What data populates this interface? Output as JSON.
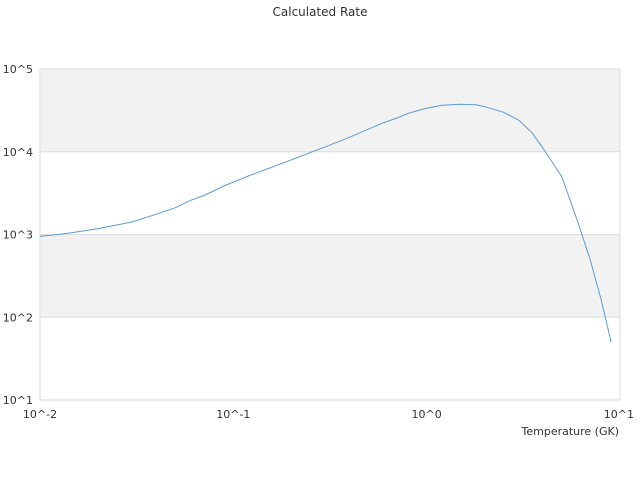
{
  "chart_data": {
    "type": "line",
    "title": "Calculated Rate",
    "xlabel": "Temperature (GK)",
    "ylabel": "",
    "x_scale": "log",
    "y_scale": "log",
    "xlim": [
      0.01,
      10
    ],
    "ylim": [
      10,
      100000
    ],
    "x_ticks": [
      {
        "value": 0.01,
        "label": "10^-2"
      },
      {
        "value": 0.1,
        "label": "10^-1"
      },
      {
        "value": 1,
        "label": "10^0"
      },
      {
        "value": 10,
        "label": "10^1"
      }
    ],
    "y_ticks": [
      {
        "value": 10,
        "label": "10^1"
      },
      {
        "value": 100,
        "label": "10^2"
      },
      {
        "value": 1000,
        "label": "10^3"
      },
      {
        "value": 10000,
        "label": "10^4"
      },
      {
        "value": 100000,
        "label": "10^5"
      }
    ],
    "grid": true,
    "alternating_bands": true,
    "band_color": "#f2f2f2",
    "series_color": "#5b9bd5",
    "series": [
      {
        "x": [
          0.01,
          0.012,
          0.015,
          0.02,
          0.03,
          0.04,
          0.05,
          0.06,
          0.07,
          0.08,
          0.09,
          0.1,
          0.12,
          0.15,
          0.2,
          0.25,
          0.3,
          0.4,
          0.5,
          0.6,
          0.7,
          0.8,
          0.9,
          1.0,
          1.2,
          1.5,
          1.8,
          2.0,
          2.5,
          3.0,
          3.5,
          4.0,
          5.0,
          6.0,
          7.0,
          8.0,
          9.0
        ],
        "y": [
          950,
          990,
          1060,
          1180,
          1420,
          1760,
          2100,
          2580,
          2950,
          3400,
          3900,
          4300,
          5100,
          6200,
          8000,
          9800,
          11500,
          15000,
          18800,
          22500,
          25500,
          29000,
          31500,
          33500,
          36500,
          37500,
          37000,
          35000,
          30000,
          24000,
          17000,
          11000,
          5000,
          1500,
          500,
          160,
          50
        ]
      }
    ]
  }
}
